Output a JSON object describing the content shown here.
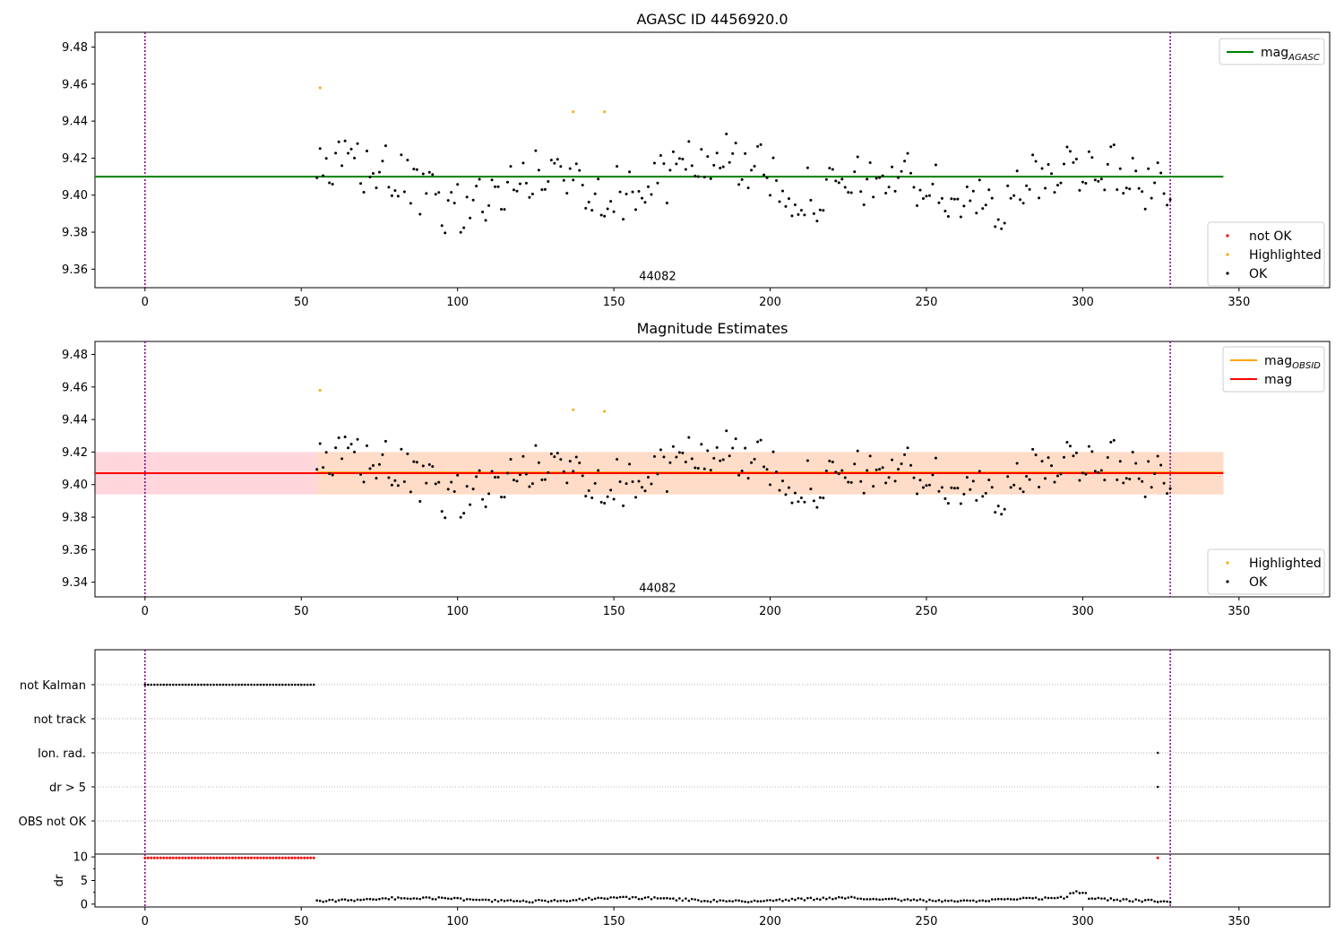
{
  "chart_data": [
    {
      "id": "top",
      "type": "scatter",
      "title": "AGASC ID 4456920.0",
      "xlim": [
        -16,
        379
      ],
      "ylim": [
        9.35,
        9.488
      ],
      "xticks": [
        0,
        50,
        100,
        150,
        200,
        250,
        300,
        350
      ],
      "yticks": [
        9.36,
        9.38,
        9.4,
        9.42,
        9.44,
        9.46,
        9.48
      ],
      "ytick_labels": [
        "9.36",
        "9.38",
        "9.40",
        "9.42",
        "9.44",
        "9.46",
        "9.48"
      ],
      "vlines": [
        0,
        328
      ],
      "hline": {
        "y": 9.41,
        "x": [
          -16,
          345
        ],
        "color": "#008000"
      },
      "annotation": {
        "text": "44082",
        "x": 164,
        "y": 9.354
      },
      "highlighted": [
        [
          56,
          9.458
        ],
        [
          137,
          9.445
        ],
        [
          147,
          9.445
        ]
      ],
      "legend_top": [
        {
          "label": "mag",
          "sub": "AGASC",
          "color": "#008000"
        }
      ],
      "legend_bottom": [
        {
          "label": "not OK",
          "color": "#ff0000"
        },
        {
          "label": "Highlighted",
          "color": "#ffa500"
        },
        {
          "label": "OK",
          "color": "#000000"
        }
      ],
      "colors": {
        "ok": "#000000",
        "highlighted": "#ffa500",
        "vline": "#800080"
      }
    },
    {
      "id": "middle",
      "type": "scatter",
      "title": "Magnitude Estimates",
      "xlim": [
        -16,
        379
      ],
      "ylim": [
        9.331,
        9.488
      ],
      "xticks": [
        0,
        50,
        100,
        150,
        200,
        250,
        300,
        350
      ],
      "yticks": [
        9.34,
        9.36,
        9.38,
        9.4,
        9.42,
        9.44,
        9.46,
        9.48
      ],
      "ytick_labels": [
        "9.34",
        "9.36",
        "9.38",
        "9.40",
        "9.42",
        "9.44",
        "9.46",
        "9.48"
      ],
      "vlines": [
        0,
        328
      ],
      "band_outer": {
        "x": [
          -16,
          345
        ],
        "y": [
          9.394,
          9.42
        ],
        "color": "#ffd6dc"
      },
      "band_inner": {
        "x": [
          55,
          345
        ],
        "y": [
          9.394,
          9.42
        ],
        "color": "#ffdcc8"
      },
      "line_obsid": {
        "y": 9.4075,
        "x": [
          55,
          345
        ],
        "color": "#ffa500"
      },
      "line_mag": {
        "y": 9.407,
        "x": [
          -16,
          345
        ],
        "color": "#ff0000"
      },
      "annotation": {
        "text": "44082",
        "x": 164,
        "y": 9.334
      },
      "highlighted": [
        [
          56,
          9.458
        ],
        [
          137,
          9.446
        ],
        [
          147,
          9.445
        ]
      ],
      "legend_top": [
        {
          "label": "mag",
          "sub": "OBSID",
          "color": "#ffa500"
        },
        {
          "label": "mag",
          "sub": "",
          "color": "#ff0000"
        }
      ],
      "legend_bottom": [
        {
          "label": "Highlighted",
          "color": "#ffa500"
        },
        {
          "label": "OK",
          "color": "#000000"
        }
      ]
    },
    {
      "id": "flags",
      "type": "scatter",
      "xlim": [
        -16,
        379
      ],
      "categories": [
        "not Kalman",
        "not track",
        "Ion. rad.",
        "dr > 5",
        "OBS not OK"
      ],
      "flags": {
        "not Kalman": {
          "x": [
            0,
            54
          ]
        },
        "Ion. rad.": {
          "x": [
            324
          ]
        },
        "dr > 5": {
          "x": [
            324
          ]
        }
      }
    },
    {
      "id": "dr",
      "type": "scatter",
      "ylabel": "dr",
      "xlim": [
        -16,
        379
      ],
      "ylim": [
        -0.6,
        10.6
      ],
      "xticks": [
        0,
        50,
        100,
        150,
        200,
        250,
        300,
        350
      ],
      "yticks": [
        0,
        5,
        10
      ],
      "ytick_labels": [
        "0",
        "5",
        "10"
      ],
      "high_dr": {
        "value": 9.8,
        "x": [
          0,
          54
        ],
        "extra_x": [
          324
        ],
        "color": "#ff0000"
      }
    }
  ]
}
